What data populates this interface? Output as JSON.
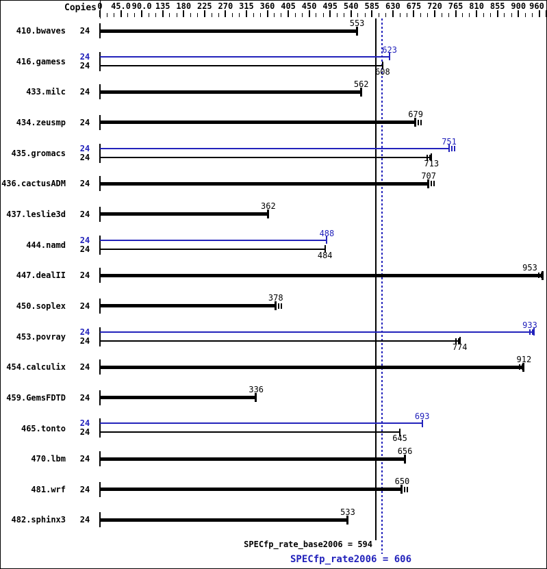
{
  "header": {
    "copies_label": "Copies"
  },
  "colors": {
    "base": "#000000",
    "peak": "#2222bb",
    "background": "#ffffff",
    "frame": "#000000"
  },
  "axis": {
    "min": 0,
    "max": 960,
    "minor_step": 15,
    "major_step": 45,
    "tick_labels": [
      {
        "value": 0,
        "text": "0"
      },
      {
        "value": 45,
        "text": "45.0"
      },
      {
        "value": 90,
        "text": "90.0"
      },
      {
        "value": 135,
        "text": "135"
      },
      {
        "value": 180,
        "text": "180"
      },
      {
        "value": 225,
        "text": "225"
      },
      {
        "value": 270,
        "text": "270"
      },
      {
        "value": 315,
        "text": "315"
      },
      {
        "value": 360,
        "text": "360"
      },
      {
        "value": 405,
        "text": "405"
      },
      {
        "value": 450,
        "text": "450"
      },
      {
        "value": 495,
        "text": "495"
      },
      {
        "value": 540,
        "text": "540"
      },
      {
        "value": 585,
        "text": "585"
      },
      {
        "value": 630,
        "text": "630"
      },
      {
        "value": 675,
        "text": "675"
      },
      {
        "value": 720,
        "text": "720"
      },
      {
        "value": 765,
        "text": "765"
      },
      {
        "value": 810,
        "text": "810"
      },
      {
        "value": 855,
        "text": "855"
      },
      {
        "value": 900,
        "text": "900"
      },
      {
        "value": 960,
        "text": "960"
      }
    ]
  },
  "benchmarks": [
    {
      "name": "410.bwaves",
      "bars": [
        {
          "kind": "base",
          "copies": "24",
          "value": 553,
          "whisker": "none"
        }
      ]
    },
    {
      "name": "416.gamess",
      "bars": [
        {
          "kind": "peak",
          "copies": "24",
          "value": 623,
          "whisker": "none"
        },
        {
          "kind": "base",
          "copies": "24",
          "value": 608,
          "whisker": "none"
        }
      ]
    },
    {
      "name": "433.milc",
      "bars": [
        {
          "kind": "base",
          "copies": "24",
          "value": 562,
          "whisker": "none"
        }
      ]
    },
    {
      "name": "434.zeusmp",
      "bars": [
        {
          "kind": "base",
          "copies": "24",
          "value": 679,
          "whisker": "after"
        }
      ]
    },
    {
      "name": "435.gromacs",
      "bars": [
        {
          "kind": "peak",
          "copies": "24",
          "value": 751,
          "whisker": "after"
        },
        {
          "kind": "base",
          "copies": "24",
          "value": 713,
          "whisker": "before"
        }
      ]
    },
    {
      "name": "436.cactusADM",
      "bars": [
        {
          "kind": "base",
          "copies": "24",
          "value": 707,
          "whisker": "after"
        }
      ]
    },
    {
      "name": "437.leslie3d",
      "bars": [
        {
          "kind": "base",
          "copies": "24",
          "value": 362,
          "whisker": "none"
        }
      ]
    },
    {
      "name": "444.namd",
      "bars": [
        {
          "kind": "peak",
          "copies": "24",
          "value": 488,
          "whisker": "none"
        },
        {
          "kind": "base",
          "copies": "24",
          "value": 484,
          "whisker": "none"
        }
      ]
    },
    {
      "name": "447.dealII",
      "bars": [
        {
          "kind": "base",
          "copies": "24",
          "value": 953,
          "whisker": "before"
        }
      ]
    },
    {
      "name": "450.soplex",
      "bars": [
        {
          "kind": "base",
          "copies": "24",
          "value": 378,
          "whisker": "after"
        }
      ]
    },
    {
      "name": "453.povray",
      "bars": [
        {
          "kind": "peak",
          "copies": "24",
          "value": 933,
          "whisker": "before"
        },
        {
          "kind": "base",
          "copies": "24",
          "value": 774,
          "whisker": "before"
        }
      ]
    },
    {
      "name": "454.calculix",
      "bars": [
        {
          "kind": "base",
          "copies": "24",
          "value": 912,
          "whisker": "before"
        }
      ]
    },
    {
      "name": "459.GemsFDTD",
      "bars": [
        {
          "kind": "base",
          "copies": "24",
          "value": 336,
          "whisker": "none"
        }
      ]
    },
    {
      "name": "465.tonto",
      "bars": [
        {
          "kind": "peak",
          "copies": "24",
          "value": 693,
          "whisker": "none"
        },
        {
          "kind": "base",
          "copies": "24",
          "value": 645,
          "whisker": "none"
        }
      ]
    },
    {
      "name": "470.lbm",
      "bars": [
        {
          "kind": "base",
          "copies": "24",
          "value": 656,
          "whisker": "none"
        }
      ]
    },
    {
      "name": "481.wrf",
      "bars": [
        {
          "kind": "base",
          "copies": "24",
          "value": 650,
          "whisker": "after"
        }
      ]
    },
    {
      "name": "482.sphinx3",
      "bars": [
        {
          "kind": "base",
          "copies": "24",
          "value": 533,
          "whisker": "none"
        }
      ]
    }
  ],
  "summary": {
    "base_label": "SPECfp_rate_base2006 = 594",
    "base_value": 594,
    "peak_label": "SPECfp_rate2006 = 606",
    "peak_value": 606
  },
  "chart_data": {
    "type": "bar",
    "orientation": "horizontal",
    "title": "",
    "xlabel": "",
    "ylabel": "Copies",
    "xlim": [
      0,
      960
    ],
    "x_major_tick_step": 45,
    "x_minor_tick_step": 15,
    "grid": false,
    "legend_position": "none",
    "copies_per_benchmark": 24,
    "categories": [
      "410.bwaves",
      "416.gamess",
      "433.milc",
      "434.zeusmp",
      "435.gromacs",
      "436.cactusADM",
      "437.leslie3d",
      "444.namd",
      "447.dealII",
      "450.soplex",
      "453.povray",
      "454.calculix",
      "459.GemsFDTD",
      "465.tonto",
      "470.lbm",
      "481.wrf",
      "482.sphinx3"
    ],
    "series": [
      {
        "name": "base",
        "color": "#000000",
        "values": [
          553,
          608,
          562,
          679,
          713,
          707,
          362,
          484,
          953,
          378,
          774,
          912,
          336,
          645,
          656,
          650,
          533
        ]
      },
      {
        "name": "peak",
        "color": "#2222bb",
        "values": [
          null,
          623,
          null,
          null,
          751,
          null,
          null,
          488,
          null,
          null,
          933,
          null,
          null,
          693,
          null,
          null,
          null
        ]
      }
    ],
    "reference_lines": [
      {
        "label": "SPECfp_rate_base2006",
        "value": 594,
        "color": "#000000",
        "style": "solid"
      },
      {
        "label": "SPECfp_rate2006",
        "value": 606,
        "color": "#2222bb",
        "style": "dotted"
      }
    ]
  }
}
